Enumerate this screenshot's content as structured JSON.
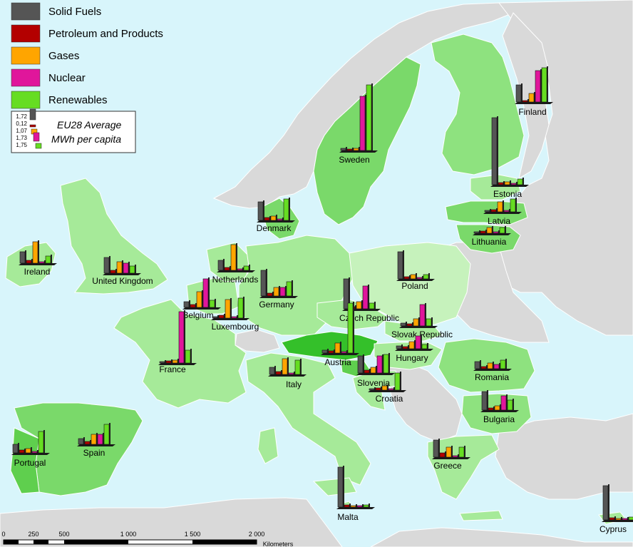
{
  "legend": {
    "items": [
      {
        "label": "Solid Fuels",
        "color": "#555555"
      },
      {
        "label": "Petroleum and Products",
        "color": "#b30000"
      },
      {
        "label": "Gases",
        "color": "#ffa500"
      },
      {
        "label": "Nuclear",
        "color": "#e0169b"
      },
      {
        "label": "Renewables",
        "color": "#66dd22"
      }
    ]
  },
  "eu_average": {
    "title": "EU28 Average",
    "unit": "MWh per capita",
    "values": [
      "1,72",
      "0,12",
      "1,07",
      "1,73",
      "1,75"
    ]
  },
  "countries": [
    {
      "name": "Sweden"
    },
    {
      "name": "Finland"
    },
    {
      "name": "Estonia"
    },
    {
      "name": "Latvia"
    },
    {
      "name": "Lithuania"
    },
    {
      "name": "Denmark"
    },
    {
      "name": "Ireland"
    },
    {
      "name": "United Kingdom"
    },
    {
      "name": "Netherlands"
    },
    {
      "name": "Belgium"
    },
    {
      "name": "Luxembourg"
    },
    {
      "name": "Germany"
    },
    {
      "name": "Poland"
    },
    {
      "name": "Czech Republic"
    },
    {
      "name": "Slovak Republic"
    },
    {
      "name": "Hungary"
    },
    {
      "name": "Austria"
    },
    {
      "name": "France"
    },
    {
      "name": "Slovenia"
    },
    {
      "name": "Croatia"
    },
    {
      "name": "Italy"
    },
    {
      "name": "Romania"
    },
    {
      "name": "Bulgaria"
    },
    {
      "name": "Greece"
    },
    {
      "name": "Spain"
    },
    {
      "name": "Portugal"
    },
    {
      "name": "Malta"
    },
    {
      "name": "Cyprus"
    }
  ],
  "scale_bar": {
    "ticks": [
      "0",
      "250",
      "500",
      "1 000",
      "1 500",
      "2 000"
    ],
    "unit": "Kilometers"
  }
}
